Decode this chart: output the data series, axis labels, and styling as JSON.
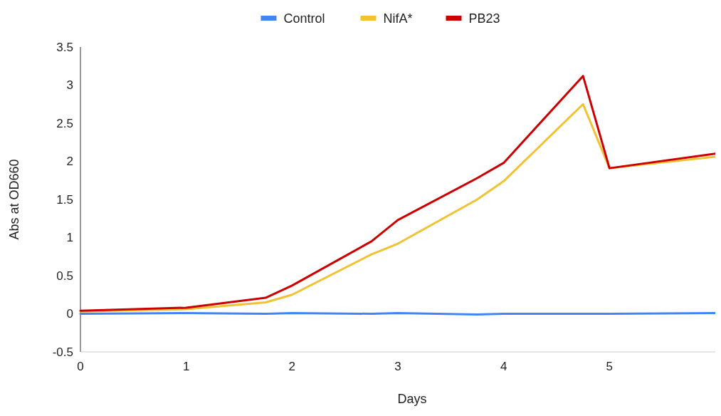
{
  "chart_data": {
    "type": "line",
    "xlabel": "Days",
    "ylabel": "Abs at OD660",
    "x": [
      0,
      1,
      1.75,
      2,
      2.75,
      3,
      3.75,
      4,
      4.75,
      5,
      6
    ],
    "series": [
      {
        "name": "Control",
        "color": "#4285f4",
        "values": [
          0,
          0.01,
          0,
          0.01,
          0,
          0.01,
          -0.01,
          0,
          0,
          0,
          0.01
        ]
      },
      {
        "name": "NifA*",
        "color": "#f1c232",
        "values": [
          0.03,
          0.06,
          0.15,
          0.25,
          0.78,
          0.92,
          1.5,
          1.74,
          2.75,
          1.91,
          2.06
        ]
      },
      {
        "name": "PB23",
        "color": "#cc0000",
        "values": [
          0.04,
          0.08,
          0.21,
          0.37,
          0.95,
          1.23,
          1.78,
          1.98,
          3.12,
          1.91,
          2.1
        ]
      }
    ],
    "xlim": [
      0,
      6
    ],
    "xticks": [
      0,
      1,
      2,
      3,
      4,
      5
    ],
    "ylim": [
      -0.5,
      3.5
    ],
    "yticks": [
      -0.5,
      0,
      0.5,
      1,
      1.5,
      2,
      2.5,
      3,
      3.5
    ],
    "grid": false,
    "legend": "top",
    "marker": "none",
    "line_style": "solid"
  }
}
